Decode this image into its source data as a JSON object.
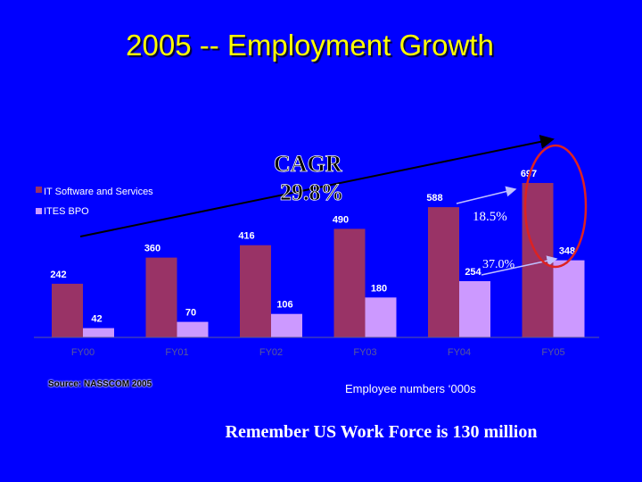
{
  "slide": {
    "title": "2005 -- Employment Growth",
    "source": "Source: NASSCOM 2005",
    "units_note": "Employee numbers ‘000s",
    "reminder": "Remember US Work Force is 130 million"
  },
  "colors": {
    "background": "#0000ff",
    "it_software": "#993366",
    "ites_bpo": "#cc99ff",
    "title": "#ffff00",
    "highlight_ellipse": "#dd2222"
  },
  "chart_data": {
    "type": "bar",
    "title": "",
    "xlabel": "",
    "ylabel": "",
    "categories": [
      "FY00",
      "FY01",
      "FY02",
      "FY03",
      "FY04",
      "FY05"
    ],
    "series": [
      {
        "name": "IT Software and Services",
        "values": [
          242,
          360,
          416,
          490,
          588,
          697
        ]
      },
      {
        "name": "ITES BPO",
        "values": [
          42,
          70,
          106,
          180,
          254,
          348
        ]
      }
    ],
    "ylim": [
      0,
      697
    ],
    "grid": false,
    "legend": "top-left",
    "annotations": {
      "cagr": [
        "CAGR",
        "29.8%"
      ],
      "it_growth": "18.5%",
      "bpo_growth": "37.0%"
    }
  }
}
